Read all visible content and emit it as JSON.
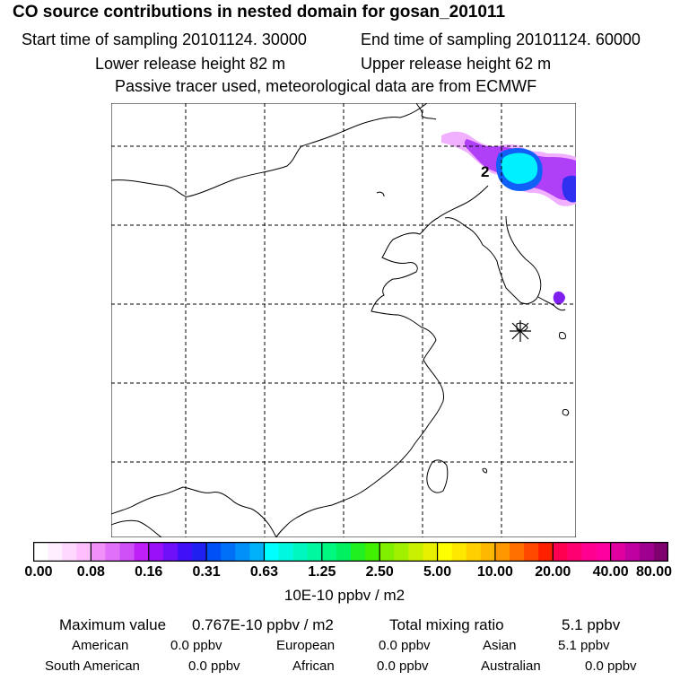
{
  "header": {
    "title": "CO  source contributions in nested domain for gosan_201011",
    "start_time": "Start time of sampling 20101124. 30000",
    "end_time": "End time of sampling 20101124. 60000",
    "lower_release": "Lower release height   82 m",
    "upper_release": "Upper release height   62 m",
    "tracer_note": "Passive tracer used, meteorological data are from ECMWF"
  },
  "map": {
    "contour_label": "2",
    "receptor": "gosan",
    "receptor_symbol": "asterisk"
  },
  "colorbar": {
    "tick_labels": [
      "0.00",
      "0.08",
      "0.16",
      "0.31",
      "0.63",
      "1.25",
      "2.50",
      "5.00",
      "10.00",
      "20.00",
      "40.00",
      "80.00"
    ],
    "colors": [
      [
        "#ffffff",
        "#ffeeff",
        "#ffd8ff",
        "#ffbfff"
      ],
      [
        "#f090f8",
        "#e070f8",
        "#d050f8",
        "#c020f8"
      ],
      [
        "#9a10f8",
        "#7010f8",
        "#4010f8",
        "#2020f0"
      ],
      [
        "#0050f8",
        "#0070f8",
        "#0090f8",
        "#00b0f8"
      ],
      [
        "#00ffff",
        "#00f8e0",
        "#00f8c0",
        "#00f8a0"
      ],
      [
        "#00f880",
        "#00f060",
        "#20f020",
        "#40f000"
      ],
      [
        "#80f000",
        "#a0f000",
        "#c8f000",
        "#e8f000"
      ],
      [
        "#ffff00",
        "#ffe800",
        "#ffd000",
        "#ffb800"
      ],
      [
        "#ff9800",
        "#ff7000",
        "#ff4800",
        "#ff2000"
      ],
      [
        "#ff0050",
        "#ff0070",
        "#ff0090",
        "#ff00a0"
      ],
      [
        "#e000a0",
        "#c000a0",
        "#a00090",
        "#800070"
      ]
    ],
    "unit": "10E-10 ppbv / m2"
  },
  "summary": {
    "max_value_label": "Maximum value",
    "max_value": "0.767E-10 ppbv / m2",
    "total_label": "Total mixing ratio",
    "total_value": "5.1 ppbv",
    "american_label": "American",
    "american_value": "0.0 ppbv",
    "european_label": "European",
    "european_value": "0.0 ppbv",
    "asian_label": "Asian",
    "asian_value": "5.1 ppbv",
    "south_american_label": "South American",
    "south_american_value": "0.0 ppbv",
    "african_label": "African",
    "african_value": "0.0 ppbv",
    "australian_label": "Australian",
    "australian_value": "0.0 ppbv"
  }
}
